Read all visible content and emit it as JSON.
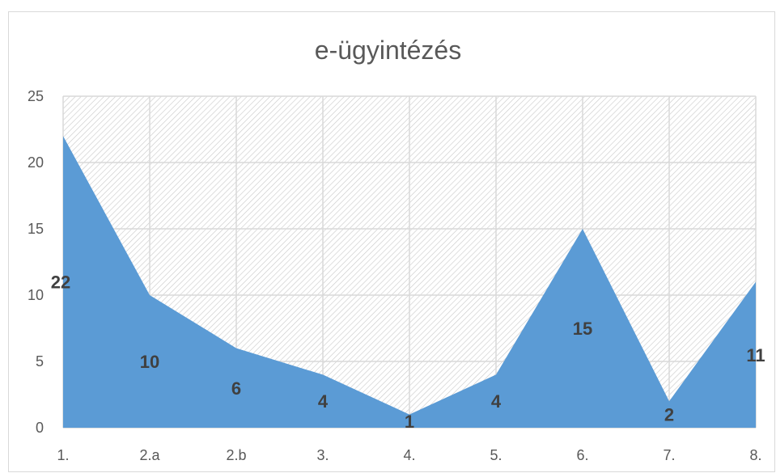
{
  "chart_data": {
    "type": "area",
    "title": "e-ügyintézés",
    "categories": [
      "1.",
      "2.a",
      "2.b",
      "3.",
      "4.",
      "5.",
      "6.",
      "7.",
      "8."
    ],
    "values": [
      22,
      10,
      6,
      4,
      1,
      4,
      15,
      2,
      11
    ],
    "ylim": [
      0,
      25
    ],
    "yticks": [
      0,
      5,
      10,
      15,
      20,
      25
    ],
    "grid": true,
    "background_pattern": "diagonal-hatch",
    "colors": {
      "area": "#5b9bd5",
      "grid": "#d9d9d9",
      "hatch": "#bfbfbf"
    }
  }
}
